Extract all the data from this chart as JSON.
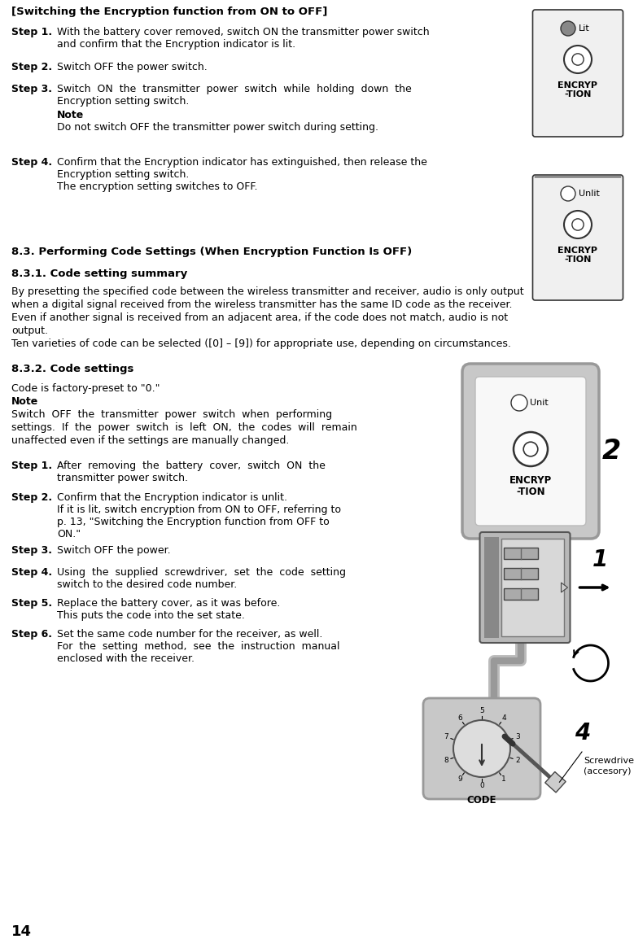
{
  "page_num": "14",
  "title": "[Switching the Encryption function from ON to OFF]",
  "section_83": "8.3. Performing Code Settings (When Encryption Function Is OFF)",
  "section_831": "8.3.1. Code setting summary",
  "section_832": "8.3.2. Code settings",
  "bg_color": "#ffffff",
  "text_color": "#000000"
}
